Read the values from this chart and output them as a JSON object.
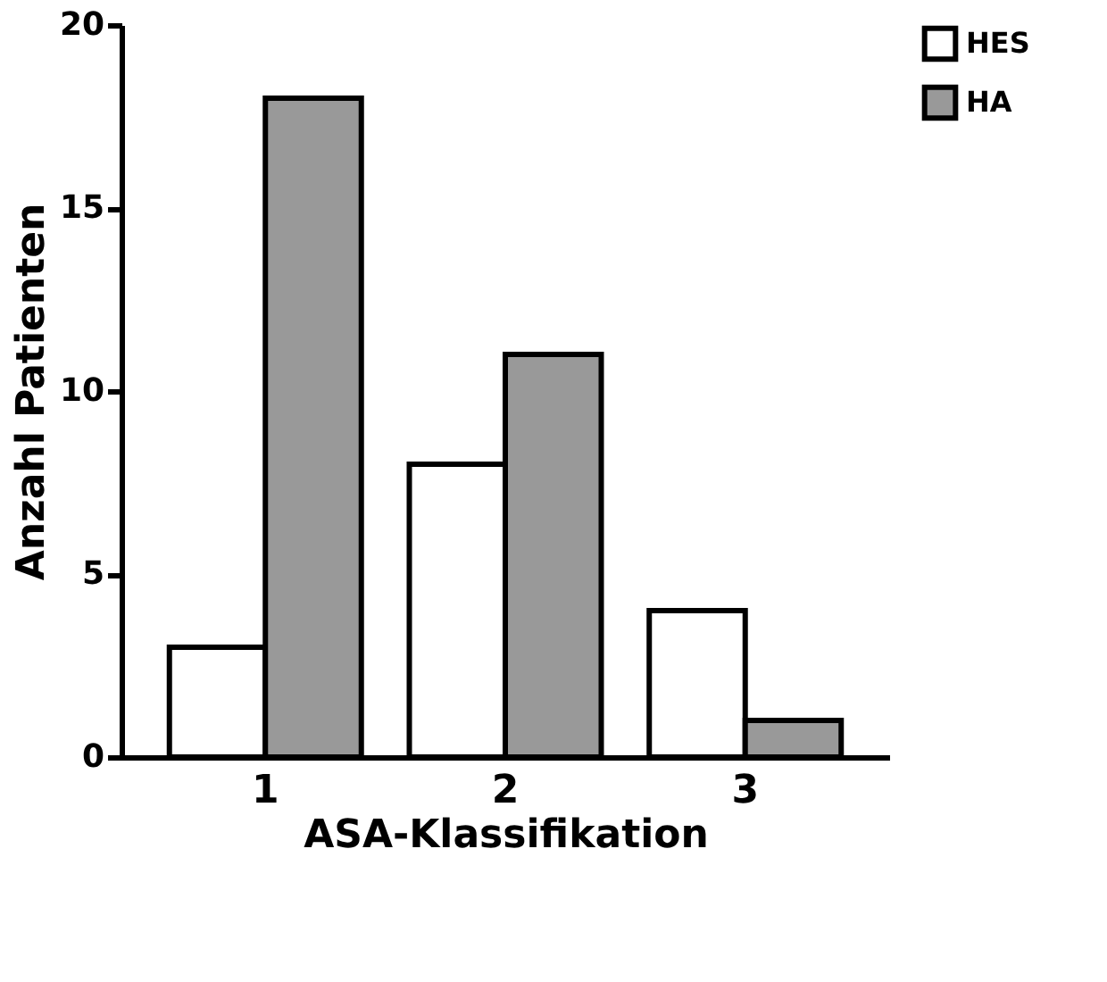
{
  "chart_data": {
    "type": "bar",
    "xlabel": "ASA-Klassifikation",
    "ylabel": "Anzahl Patienten",
    "categories": [
      "1",
      "2",
      "3"
    ],
    "series": [
      {
        "name": "HES",
        "color": "#ffffff",
        "values": [
          3,
          8,
          4
        ]
      },
      {
        "name": "HA",
        "color": "#999999",
        "values": [
          18,
          11,
          1
        ]
      }
    ],
    "ylim": [
      0,
      20
    ],
    "yticks": [
      0,
      5,
      10,
      15,
      20
    ],
    "grid": false,
    "legend": "top right"
  }
}
